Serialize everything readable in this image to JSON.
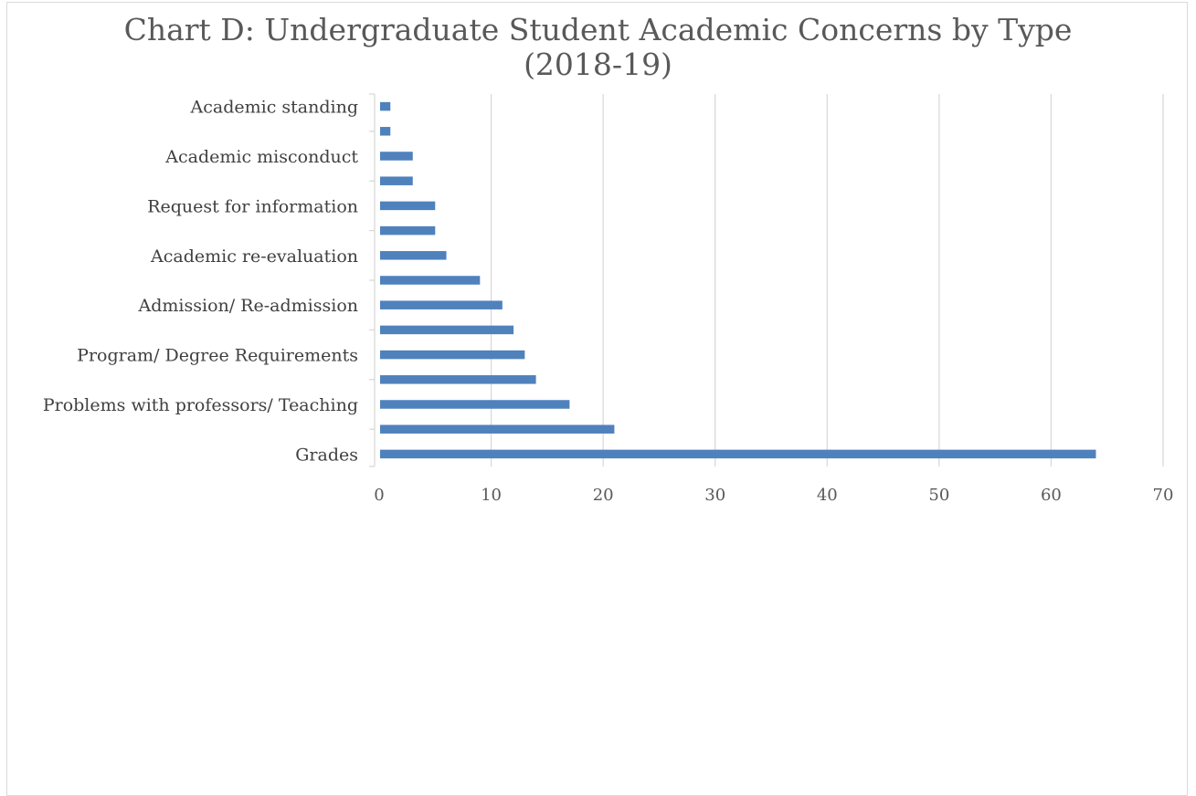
{
  "chart_data": {
    "type": "bar",
    "orientation": "horizontal",
    "title_lines": [
      "Chart D: Undergraduate Student Academic Concerns by Type",
      "(2018-19)"
    ],
    "categories": [
      "Academic standing",
      "",
      "Academic misconduct",
      "",
      "Request for information",
      "",
      "Academic re-evaluation",
      "",
      "Admission/ Re-admission",
      "",
      "Program/ Degree Requirements",
      "",
      "Problems with professors/ Teaching",
      "",
      "Grades"
    ],
    "values": [
      1,
      1,
      3,
      3,
      5,
      5,
      6,
      9,
      11,
      12,
      13,
      14,
      17,
      21,
      64
    ],
    "xlim": [
      0,
      70
    ],
    "xticks": [
      0,
      10,
      20,
      30,
      40,
      50,
      60,
      70
    ],
    "grid": true,
    "bar_color": "#4f81bd",
    "grid_color": "#d9d9d9",
    "axis_color": "#d9d9d9"
  }
}
